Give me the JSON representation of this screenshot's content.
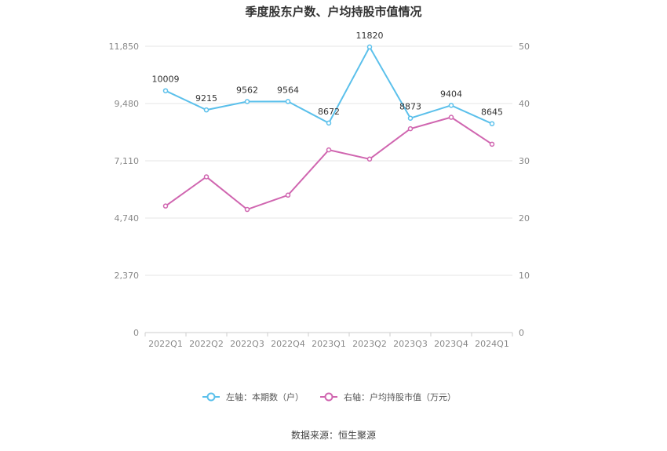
{
  "chart_data": {
    "type": "line",
    "title": "季度股东户数、户均持股市值情况",
    "categories": [
      "2022Q1",
      "2022Q2",
      "2022Q3",
      "2022Q4",
      "2023Q1",
      "2023Q2",
      "2023Q3",
      "2023Q4",
      "2024Q1"
    ],
    "left_axis": {
      "min": 0,
      "max": 11850,
      "ticks": [
        "0",
        "2,370",
        "4,740",
        "7,110",
        "9,480",
        "11,850"
      ],
      "tick_values": [
        0,
        2370,
        4740,
        7110,
        9480,
        11850
      ]
    },
    "right_axis": {
      "min": 0,
      "max": 50,
      "ticks": [
        "0",
        "10",
        "20",
        "30",
        "40",
        "50"
      ],
      "tick_values": [
        0,
        10,
        20,
        30,
        40,
        50
      ]
    },
    "series": [
      {
        "name": "左轴：本期数（户）",
        "axis": "left",
        "color": "#5bc0eb",
        "values": [
          10009,
          9215,
          9562,
          9564,
          8672,
          11820,
          8873,
          9404,
          8645
        ],
        "labels": [
          "10009",
          "9215",
          "9562",
          "9564",
          "8672",
          "11820",
          "8873",
          "9404",
          "8645"
        ]
      },
      {
        "name": "右轴：户均持股市值（万元）",
        "axis": "right",
        "color": "#d066b0",
        "values": [
          22.1,
          27.2,
          21.5,
          24.0,
          31.9,
          30.3,
          35.6,
          37.6,
          32.9
        ]
      }
    ],
    "grid": true,
    "legend_position": "bottom-center"
  },
  "source_text": "数据来源：恒生聚源"
}
